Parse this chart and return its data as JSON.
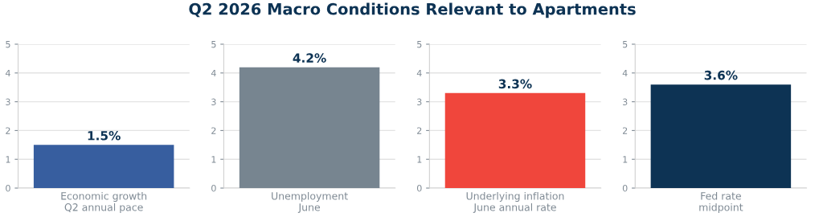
{
  "chart_data": [
    {
      "type": "bar",
      "categories": [
        "Economic growth\nQ2 annual pace"
      ],
      "values": [
        1.5
      ],
      "color": "#375e9f",
      "ylim": [
        0,
        5
      ],
      "yticks": [
        0,
        1,
        2,
        3,
        4,
        5
      ],
      "grid": "y",
      "value_labels": [
        "1.5%"
      ]
    },
    {
      "type": "bar",
      "title": "Q2 2026 Macro Conditions Relevant to Apartments",
      "categories": [
        "Unemployment\nJune"
      ],
      "values": [
        4.2
      ],
      "color": "#778590",
      "ylim": [
        0,
        5
      ],
      "yticks": [
        0,
        1,
        2,
        3,
        4,
        5
      ],
      "grid": "y",
      "value_labels": [
        "4.2%"
      ]
    },
    {
      "type": "bar",
      "categories": [
        "Underlying inflation\nJune annual rate"
      ],
      "values": [
        3.3
      ],
      "color": "#f0463c",
      "ylim": [
        0,
        5
      ],
      "yticks": [
        0,
        1,
        2,
        3,
        4,
        5
      ],
      "grid": "y",
      "value_labels": [
        "3.3%"
      ]
    },
    {
      "type": "bar",
      "categories": [
        "Fed rate\nmidpoint"
      ],
      "values": [
        3.6
      ],
      "color": "#0d3354",
      "ylim": [
        0,
        5
      ],
      "yticks": [
        0,
        1,
        2,
        3,
        4,
        5
      ],
      "grid": "y",
      "value_labels": [
        "3.6%"
      ]
    }
  ]
}
